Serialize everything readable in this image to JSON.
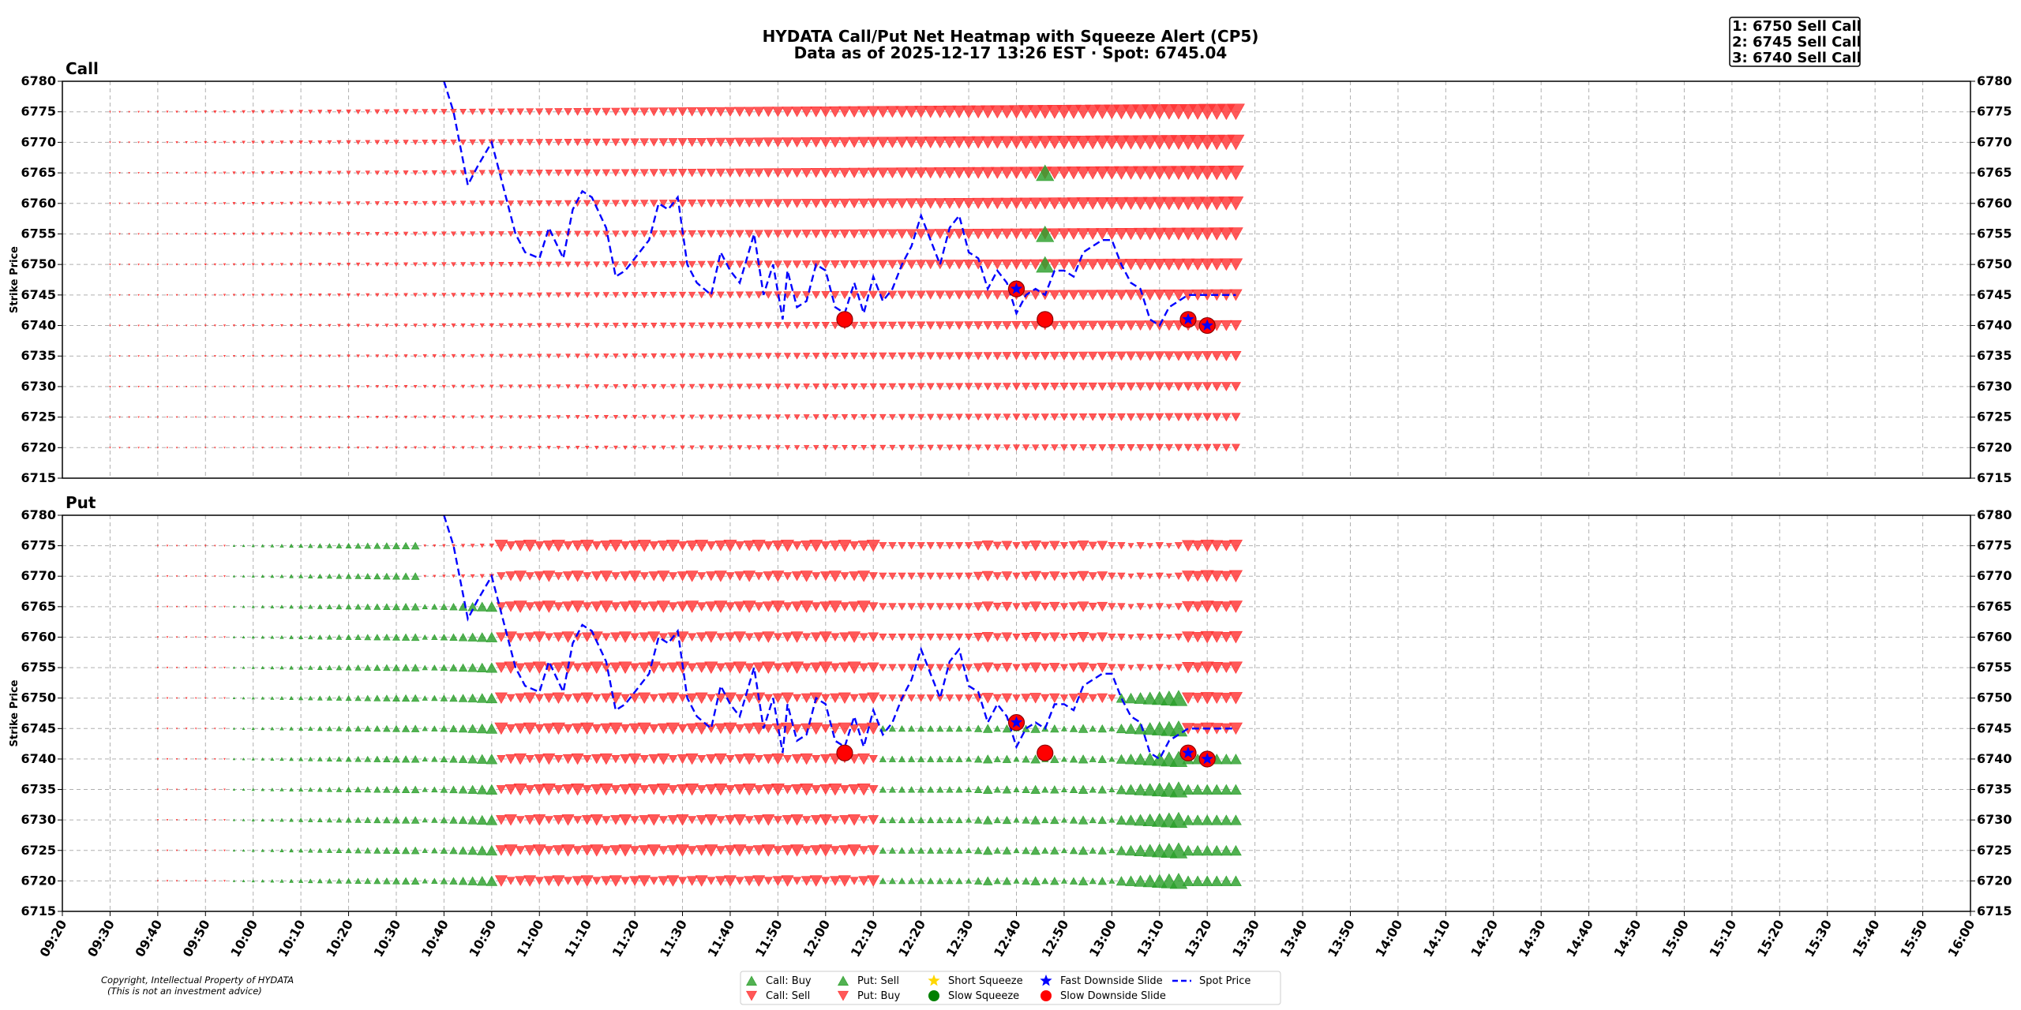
{
  "chart_data": {
    "type": "scatter",
    "title": "HYDATA Call/Put Net Heatmap with Squeeze Alert (CP5)",
    "subtitle": "Data as of 2025-12-17 13:26 EST · Spot: 6745.04",
    "ylabel": "Strike Price",
    "ylim": [
      6715,
      6780
    ],
    "y_ticks": [
      6715,
      6720,
      6725,
      6730,
      6735,
      6740,
      6745,
      6750,
      6755,
      6760,
      6765,
      6770,
      6775,
      6780
    ],
    "x_ticks": [
      "09:20",
      "09:30",
      "09:40",
      "09:50",
      "10:00",
      "10:10",
      "10:20",
      "10:30",
      "10:40",
      "10:50",
      "11:00",
      "11:10",
      "11:20",
      "11:30",
      "11:40",
      "11:50",
      "12:00",
      "12:10",
      "12:20",
      "12:30",
      "12:40",
      "12:50",
      "13:00",
      "13:10",
      "13:20",
      "13:30",
      "13:40",
      "13:50",
      "14:00",
      "14:10",
      "14:20",
      "14:30",
      "14:40",
      "14:50",
      "15:00",
      "15:10",
      "15:20",
      "15:30",
      "15:40",
      "15:50",
      "16:00"
    ],
    "x_range_minutes": [
      560,
      960
    ],
    "last_data_minute": 806,
    "strikes": [
      6720,
      6725,
      6730,
      6735,
      6740,
      6745,
      6750,
      6755,
      6760,
      6765,
      6770,
      6775
    ],
    "panels": [
      {
        "name": "Call",
        "net_description": "Call selling (red down triangles) across all strikes, growing toward the session end; buy markers at 6765, 6755, 6750 near 12:45"
      },
      {
        "name": "Put",
        "net_description": "Put selling (green) before 10:35 and at low strikes late; put buying (red) dominant 10:35-12:05 at all strikes"
      }
    ],
    "call_buy_markers": [
      {
        "time": "12:46",
        "strike": 6765
      },
      {
        "time": "12:46",
        "strike": 6755
      },
      {
        "time": "12:46",
        "strike": 6750
      }
    ],
    "spot_series": {
      "name": "Spot Price",
      "times": [
        "10:40",
        "10:42",
        "10:45",
        "10:47",
        "10:50",
        "10:52",
        "10:55",
        "10:57",
        "11:00",
        "11:02",
        "11:05",
        "11:07",
        "11:09",
        "11:11",
        "11:14",
        "11:16",
        "11:18",
        "11:20",
        "11:23",
        "11:25",
        "11:27",
        "11:29",
        "11:31",
        "11:33",
        "11:36",
        "11:38",
        "11:40",
        "11:42",
        "11:45",
        "11:47",
        "11:49",
        "11:51",
        "11:52",
        "11:54",
        "11:56",
        "11:58",
        "12:00",
        "12:02",
        "12:04",
        "12:06",
        "12:08",
        "12:10",
        "12:12",
        "12:14",
        "12:16",
        "12:18",
        "12:20",
        "12:22",
        "12:24",
        "12:26",
        "12:28",
        "12:30",
        "12:32",
        "12:34",
        "12:36",
        "12:38",
        "12:40",
        "12:42",
        "12:44",
        "12:46",
        "12:48",
        "12:50",
        "12:52",
        "12:54",
        "12:56",
        "12:58",
        "13:00",
        "13:02",
        "13:04",
        "13:06",
        "13:08",
        "13:10",
        "13:12",
        "13:14",
        "13:16",
        "13:18",
        "13:20",
        "13:22",
        "13:24",
        "13:26"
      ],
      "values": [
        6780,
        6775,
        6763,
        6766,
        6770,
        6764,
        6755,
        6752,
        6751,
        6756,
        6751,
        6759,
        6762,
        6761,
        6756,
        6748,
        6749,
        6751,
        6754,
        6760,
        6759,
        6761,
        6750,
        6747,
        6745,
        6752,
        6749,
        6747,
        6755,
        6745,
        6750,
        6741,
        6749,
        6743,
        6744,
        6750,
        6749,
        6743,
        6742,
        6747,
        6742,
        6748,
        6744,
        6746,
        6750,
        6753,
        6758,
        6754,
        6750,
        6756,
        6758,
        6752,
        6751,
        6746,
        6749,
        6747,
        6742,
        6745,
        6746,
        6745,
        6749,
        6749,
        6748,
        6752,
        6753,
        6754,
        6754,
        6750,
        6747,
        6746,
        6741,
        6740,
        6743,
        6744,
        6745,
        6745,
        6745,
        6745,
        6745,
        6745
      ]
    },
    "slow_downside_slide": [
      {
        "time": "12:04",
        "strike": 6741
      },
      {
        "time": "12:46",
        "strike": 6741
      }
    ],
    "fast_downside_slide": [
      {
        "time": "12:40",
        "strike": 6746
      },
      {
        "time": "13:16",
        "strike": 6741
      },
      {
        "time": "13:20",
        "strike": 6740
      }
    ],
    "legend": [
      {
        "label": "Call: Buy",
        "marker": "triangle-up",
        "color": "#2ca02c"
      },
      {
        "label": "Call: Sell",
        "marker": "triangle-down",
        "color": "#ff3333"
      },
      {
        "label": "Put: Sell",
        "marker": "triangle-up",
        "color": "#2ca02c"
      },
      {
        "label": "Put: Buy",
        "marker": "triangle-down",
        "color": "#ff3333"
      },
      {
        "label": "Short Squeeze",
        "marker": "star",
        "color": "#ffd700"
      },
      {
        "label": "Slow Squeeze",
        "marker": "circle",
        "color": "#008000"
      },
      {
        "label": "Fast Downside Slide",
        "marker": "star",
        "color": "#0000ff"
      },
      {
        "label": "Slow Downside Slide",
        "marker": "circle",
        "color": "#ff0000"
      },
      {
        "label": "Spot Price",
        "marker": "dashed-line",
        "color": "#0000ff"
      }
    ]
  },
  "annotations": {
    "top_calls": [
      "1: 6750 Sell Call",
      "2: 6745 Sell Call",
      "3: 6740 Sell Call"
    ],
    "copyright_line1": "Copyright, Intellectual Property of HYDATA",
    "copyright_line2": "(This is not an investment advice)"
  },
  "colors": {
    "sell_call_red": "#ff3333",
    "green": "#2ca02c",
    "spot_blue": "#0000ff",
    "slide_red": "#ff0000"
  }
}
